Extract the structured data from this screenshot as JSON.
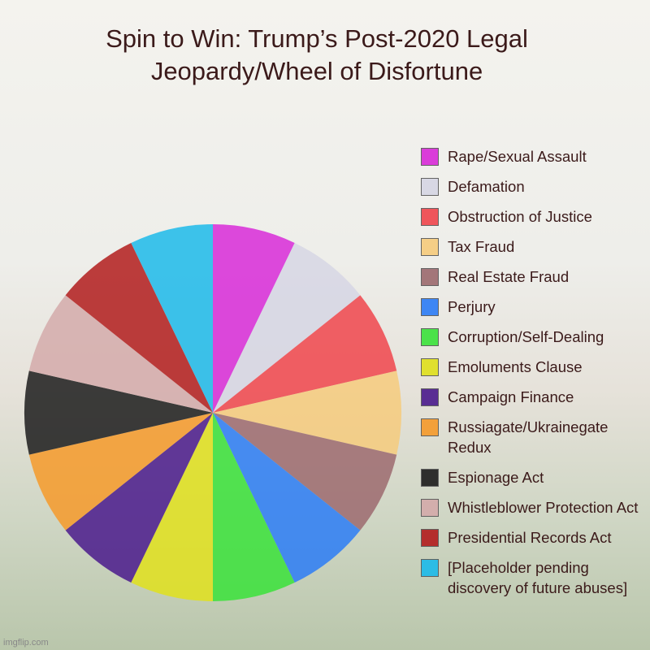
{
  "chart_data": {
    "type": "pie",
    "title": "Spin to Win: Trump’s Post-2020 Legal Jeopardy/Wheel of Disfortune",
    "categories": [
      "Rape/Sexual Assault",
      "Defamation",
      "Obstruction of Justice",
      "Tax Fraud",
      "Real Estate Fraud",
      "Perjury",
      "Corruption/Self-Dealing",
      "Emoluments Clause",
      "Campaign Finance",
      "Russiagate/Ukrainegate Redux",
      "Espionage Act",
      "Whistleblower Protection Act",
      "Presidential Records Act",
      "[Placeholder pending discovery of future abuses]"
    ],
    "values": [
      1,
      1,
      1,
      1,
      1,
      1,
      1,
      1,
      1,
      1,
      1,
      1,
      1,
      1
    ],
    "colors": [
      "#d82ad8",
      "#d6d6e4",
      "#f0454c",
      "#f6cb7c",
      "#9c6a6e",
      "#2c7cf6",
      "#3ae23a",
      "#e0e01c",
      "#4a1a8c",
      "#f69a2a",
      "#1c1c1c",
      "#d4aaaa",
      "#b21c1c",
      "#1cbaea"
    ],
    "legend": "right"
  },
  "watermark": "imgflip.com"
}
